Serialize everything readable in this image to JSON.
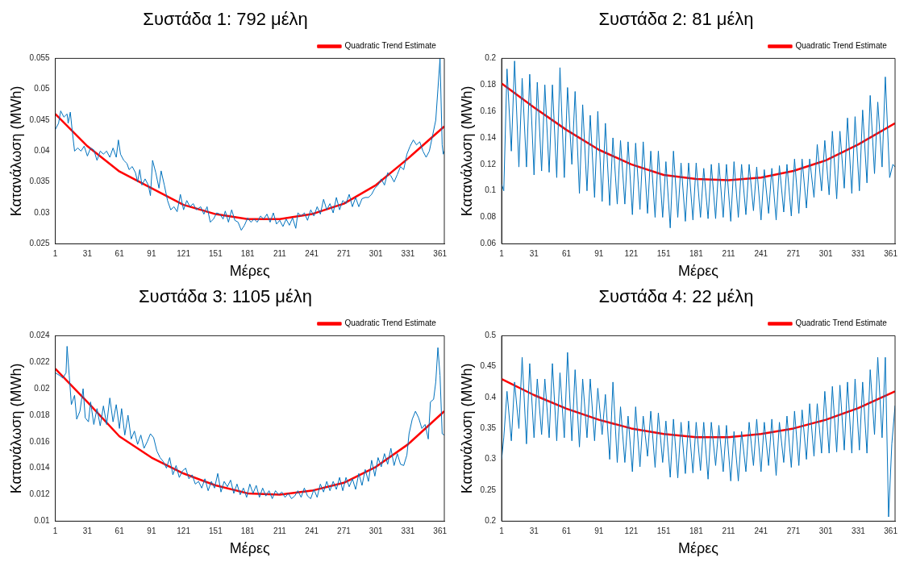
{
  "chart_data": [
    {
      "type": "line",
      "title": "Συστάδα 1: 792 μέλη",
      "xlabel": "Μέρες",
      "ylabel": "Κατανάλωση (MWh)",
      "xlim": [
        1,
        365
      ],
      "xticks": [
        1,
        31,
        61,
        91,
        121,
        151,
        181,
        211,
        241,
        271,
        301,
        331,
        361
      ],
      "ylim": [
        0.025,
        0.055
      ],
      "yticks": [
        0.025,
        0.03,
        0.035,
        0.04,
        0.045,
        0.05,
        0.055
      ],
      "grid": false,
      "legend": "top right",
      "series": [
        {
          "color": "#0072bd",
          "x": [
            1,
            4,
            6,
            9,
            12,
            13,
            15,
            17,
            19,
            22,
            25,
            28,
            31,
            34,
            37,
            40,
            43,
            46,
            49,
            52,
            55,
            58,
            60,
            62,
            65,
            68,
            70,
            73,
            76,
            78,
            80,
            82,
            85,
            88,
            90,
            92,
            95,
            98,
            100,
            103,
            106,
            109,
            112,
            115,
            118,
            121,
            124,
            127,
            130,
            133,
            137,
            140,
            143,
            146,
            149,
            152,
            155,
            158,
            160,
            163,
            166,
            169,
            172,
            175,
            178,
            181,
            184,
            187,
            190,
            193,
            196,
            199,
            202,
            205,
            208,
            211,
            214,
            217,
            220,
            223,
            226,
            228,
            231,
            234,
            237,
            240,
            243,
            246,
            249,
            252,
            255,
            258,
            261,
            264,
            267,
            270,
            273,
            276,
            279,
            282,
            285,
            288,
            291,
            294,
            297,
            300,
            303,
            306,
            309,
            312,
            315,
            318,
            321,
            324,
            327,
            330,
            333,
            336,
            339,
            342,
            345,
            348,
            351,
            354,
            357,
            359,
            361,
            363,
            364,
            365
          ],
          "values": [
            0.0435,
            0.0445,
            0.0465,
            0.0455,
            0.046,
            0.0445,
            0.0463,
            0.043,
            0.04,
            0.0405,
            0.04,
            0.0408,
            0.0392,
            0.0405,
            0.0402,
            0.0385,
            0.04,
            0.0395,
            0.04,
            0.039,
            0.0405,
            0.039,
            0.0418,
            0.0395,
            0.0385,
            0.038,
            0.037,
            0.0375,
            0.0365,
            0.035,
            0.037,
            0.0345,
            0.0355,
            0.0345,
            0.0328,
            0.0385,
            0.0365,
            0.034,
            0.0368,
            0.0345,
            0.032,
            0.0305,
            0.031,
            0.0302,
            0.033,
            0.0305,
            0.032,
            0.031,
            0.0315,
            0.0305,
            0.031,
            0.0298,
            0.031,
            0.0285,
            0.029,
            0.03,
            0.0298,
            0.029,
            0.0303,
            0.0285,
            0.0305,
            0.0288,
            0.0285,
            0.0272,
            0.028,
            0.0292,
            0.0285,
            0.029,
            0.0285,
            0.0295,
            0.029,
            0.0298,
            0.0285,
            0.03,
            0.0282,
            0.0288,
            0.0278,
            0.029,
            0.028,
            0.0292,
            0.0275,
            0.03,
            0.0295,
            0.03,
            0.0288,
            0.0305,
            0.0295,
            0.031,
            0.0298,
            0.0322,
            0.0305,
            0.0315,
            0.03,
            0.0325,
            0.0305,
            0.032,
            0.0315,
            0.033,
            0.031,
            0.0325,
            0.031,
            0.0323,
            0.0325,
            0.0325,
            0.033,
            0.034,
            0.0345,
            0.0355,
            0.0345,
            0.0365,
            0.036,
            0.035,
            0.0362,
            0.0375,
            0.037,
            0.0395,
            0.0408,
            0.0418,
            0.041,
            0.0415,
            0.04,
            0.039,
            0.04,
            0.0425,
            0.045,
            0.05,
            0.055,
            0.041,
            0.0395,
            0.04
          ]
        },
        {
          "type": "line",
          "name": "Quadratic Trend Estimate",
          "color": "#ff0000",
          "x": [
            1,
            31,
            61,
            91,
            121,
            151,
            181,
            211,
            241,
            271,
            301,
            331,
            365
          ],
          "values": [
            0.046,
            0.0408,
            0.0367,
            0.034,
            0.0313,
            0.0298,
            0.029,
            0.029,
            0.0298,
            0.0315,
            0.0345,
            0.0388,
            0.044
          ]
        }
      ]
    },
    {
      "type": "line",
      "title": "Συστάδα 2: 81 μέλη",
      "xlabel": "Μέρες",
      "ylabel": "Κατανάλωση (MWh)",
      "xlim": [
        1,
        365
      ],
      "xticks": [
        1,
        31,
        61,
        91,
        121,
        151,
        181,
        211,
        241,
        271,
        301,
        331,
        361
      ],
      "ylim": [
        0.06,
        0.2
      ],
      "yticks": [
        0.06,
        0.08,
        0.1,
        0.12,
        0.14,
        0.16,
        0.18,
        0.2
      ],
      "grid": false,
      "legend": "top right",
      "series": [
        {
          "color": "#0072bd",
          "x": [
            1,
            3,
            6,
            10,
            13,
            17,
            20,
            24,
            27,
            31,
            34,
            38,
            41,
            45,
            48,
            52,
            55,
            59,
            62,
            66,
            69,
            73,
            76,
            80,
            83,
            87,
            90,
            94,
            97,
            101,
            104,
            108,
            111,
            115,
            118,
            122,
            125,
            129,
            132,
            136,
            139,
            143,
            146,
            150,
            153,
            157,
            160,
            164,
            167,
            171,
            174,
            178,
            181,
            185,
            188,
            192,
            195,
            199,
            202,
            206,
            209,
            213,
            216,
            220,
            223,
            227,
            230,
            234,
            237,
            241,
            244,
            248,
            251,
            255,
            258,
            262,
            265,
            269,
            272,
            276,
            279,
            283,
            286,
            290,
            293,
            297,
            300,
            304,
            307,
            311,
            314,
            318,
            321,
            325,
            328,
            332,
            335,
            339,
            342,
            346,
            349,
            353,
            356,
            360,
            363,
            365
          ],
          "values": [
            0.105,
            0.1,
            0.192,
            0.13,
            0.198,
            0.118,
            0.185,
            0.118,
            0.188,
            0.112,
            0.182,
            0.115,
            0.18,
            0.114,
            0.18,
            0.11,
            0.193,
            0.11,
            0.178,
            0.12,
            0.175,
            0.098,
            0.165,
            0.1,
            0.157,
            0.095,
            0.16,
            0.092,
            0.151,
            0.089,
            0.14,
            0.09,
            0.138,
            0.09,
            0.137,
            0.082,
            0.136,
            0.086,
            0.137,
            0.083,
            0.13,
            0.08,
            0.13,
            0.08,
            0.122,
            0.072,
            0.13,
            0.08,
            0.121,
            0.077,
            0.121,
            0.078,
            0.121,
            0.08,
            0.117,
            0.079,
            0.12,
            0.079,
            0.121,
            0.08,
            0.12,
            0.077,
            0.122,
            0.08,
            0.12,
            0.082,
            0.12,
            0.085,
            0.118,
            0.078,
            0.116,
            0.083,
            0.117,
            0.078,
            0.119,
            0.084,
            0.12,
            0.081,
            0.124,
            0.083,
            0.124,
            0.087,
            0.124,
            0.095,
            0.135,
            0.1,
            0.138,
            0.097,
            0.145,
            0.094,
            0.145,
            0.102,
            0.155,
            0.098,
            0.156,
            0.1,
            0.161,
            0.106,
            0.172,
            0.113,
            0.167,
            0.118,
            0.186,
            0.11,
            0.12,
            0.118
          ]
        },
        {
          "type": "line",
          "name": "Quadratic Trend Estimate",
          "color": "#ff0000",
          "x": [
            1,
            31,
            61,
            91,
            121,
            151,
            181,
            211,
            241,
            271,
            301,
            331,
            365
          ],
          "values": [
            0.181,
            0.163,
            0.146,
            0.131,
            0.12,
            0.112,
            0.109,
            0.108,
            0.11,
            0.115,
            0.123,
            0.135,
            0.151
          ]
        }
      ]
    },
    {
      "type": "line",
      "title": "Συστάδα 3: 1105 μέλη",
      "xlabel": "Μέρες",
      "ylabel": "Κατανάλωση (MWh)",
      "xlim": [
        1,
        365
      ],
      "xticks": [
        1,
        31,
        61,
        91,
        121,
        151,
        181,
        211,
        241,
        271,
        301,
        331,
        361
      ],
      "ylim": [
        0.01,
        0.024
      ],
      "yticks": [
        0.01,
        0.012,
        0.014,
        0.016,
        0.018,
        0.02,
        0.022,
        0.024
      ],
      "grid": false,
      "legend": "top right",
      "series": [
        {
          "color": "#0072bd",
          "x": [
            1,
            5,
            8,
            11,
            12,
            14,
            16,
            19,
            21,
            24,
            27,
            29,
            32,
            34,
            37,
            40,
            43,
            46,
            49,
            52,
            55,
            58,
            61,
            63,
            66,
            69,
            72,
            75,
            78,
            81,
            84,
            87,
            90,
            93,
            96,
            99,
            102,
            105,
            108,
            111,
            114,
            117,
            120,
            123,
            126,
            129,
            132,
            135,
            138,
            141,
            144,
            147,
            150,
            153,
            156,
            159,
            162,
            165,
            168,
            171,
            174,
            177,
            180,
            183,
            186,
            189,
            192,
            195,
            198,
            201,
            204,
            207,
            210,
            213,
            216,
            219,
            222,
            225,
            228,
            231,
            234,
            237,
            240,
            243,
            246,
            249,
            252,
            255,
            258,
            261,
            264,
            267,
            270,
            273,
            276,
            279,
            282,
            285,
            288,
            291,
            294,
            297,
            300,
            303,
            306,
            309,
            312,
            315,
            318,
            321,
            324,
            327,
            330,
            332,
            335,
            338,
            341,
            344,
            347,
            350,
            352,
            355,
            357,
            359,
            361,
            363,
            365
          ],
          "values": [
            0.0212,
            0.021,
            0.0208,
            0.0212,
            0.0232,
            0.021,
            0.0188,
            0.0195,
            0.0177,
            0.0183,
            0.02,
            0.0178,
            0.0175,
            0.019,
            0.0173,
            0.0185,
            0.0172,
            0.0187,
            0.0173,
            0.0193,
            0.0175,
            0.0188,
            0.017,
            0.0185,
            0.0165,
            0.018,
            0.0162,
            0.0168,
            0.0158,
            0.0165,
            0.0155,
            0.016,
            0.0166,
            0.0163,
            0.0153,
            0.0148,
            0.0145,
            0.014,
            0.0148,
            0.0135,
            0.0142,
            0.0133,
            0.0138,
            0.014,
            0.0132,
            0.0135,
            0.0128,
            0.013,
            0.0125,
            0.0132,
            0.0123,
            0.013,
            0.0125,
            0.0136,
            0.0122,
            0.013,
            0.0126,
            0.0131,
            0.0121,
            0.0128,
            0.012,
            0.0125,
            0.0118,
            0.0128,
            0.0121,
            0.0127,
            0.0118,
            0.0125,
            0.0119,
            0.0123,
            0.0117,
            0.0123,
            0.012,
            0.0122,
            0.0118,
            0.0121,
            0.0117,
            0.0119,
            0.0123,
            0.0118,
            0.0125,
            0.0119,
            0.0117,
            0.0124,
            0.0118,
            0.0128,
            0.0122,
            0.013,
            0.0123,
            0.013,
            0.0124,
            0.0133,
            0.0123,
            0.0133,
            0.0126,
            0.0132,
            0.0124,
            0.0136,
            0.0127,
            0.0139,
            0.013,
            0.0146,
            0.0134,
            0.0148,
            0.0141,
            0.0151,
            0.0143,
            0.0155,
            0.0142,
            0.0151,
            0.0143,
            0.0142,
            0.015,
            0.0166,
            0.0177,
            0.0183,
            0.0178,
            0.017,
            0.0173,
            0.0162,
            0.019,
            0.0192,
            0.0205,
            0.0231,
            0.021,
            0.0166,
            0.0165
          ]
        },
        {
          "type": "line",
          "name": "Quadratic Trend Estimate",
          "color": "#ff0000",
          "x": [
            1,
            31,
            61,
            91,
            121,
            151,
            181,
            211,
            241,
            271,
            301,
            331,
            365
          ],
          "values": [
            0.0215,
            0.019,
            0.0164,
            0.0148,
            0.0136,
            0.0127,
            0.0121,
            0.012,
            0.0123,
            0.0129,
            0.0141,
            0.0158,
            0.0183
          ]
        }
      ]
    },
    {
      "type": "line",
      "title": "Συστάδα 4: 22 μέλη",
      "xlabel": "Μέρες",
      "ylabel": "Κατανάλωση (MWh)",
      "xlim": [
        1,
        365
      ],
      "xticks": [
        1,
        31,
        61,
        91,
        121,
        151,
        181,
        211,
        241,
        271,
        301,
        331,
        361
      ],
      "ylim": [
        0.2,
        0.5
      ],
      "yticks": [
        0.2,
        0.25,
        0.3,
        0.35,
        0.4,
        0.45,
        0.5
      ],
      "grid": false,
      "legend": "top right",
      "series": [
        {
          "color": "#0072bd",
          "x": [
            1,
            3,
            6,
            10,
            13,
            17,
            20,
            24,
            27,
            31,
            34,
            38,
            41,
            45,
            48,
            52,
            55,
            59,
            62,
            66,
            69,
            73,
            76,
            80,
            83,
            87,
            90,
            94,
            97,
            101,
            104,
            108,
            111,
            115,
            118,
            122,
            125,
            129,
            132,
            136,
            139,
            143,
            146,
            150,
            153,
            157,
            160,
            164,
            167,
            171,
            174,
            178,
            181,
            185,
            188,
            192,
            195,
            199,
            202,
            206,
            209,
            213,
            216,
            220,
            223,
            227,
            230,
            234,
            237,
            241,
            244,
            248,
            251,
            255,
            258,
            262,
            265,
            269,
            272,
            276,
            279,
            283,
            286,
            290,
            293,
            297,
            300,
            304,
            307,
            311,
            314,
            318,
            321,
            325,
            328,
            332,
            335,
            339,
            342,
            346,
            349,
            353,
            356,
            359,
            362,
            365
          ],
          "values": [
            0.3,
            0.335,
            0.41,
            0.33,
            0.425,
            0.35,
            0.465,
            0.325,
            0.455,
            0.335,
            0.43,
            0.34,
            0.43,
            0.335,
            0.455,
            0.33,
            0.44,
            0.335,
            0.473,
            0.33,
            0.445,
            0.32,
            0.43,
            0.335,
            0.43,
            0.33,
            0.415,
            0.34,
            0.405,
            0.3,
            0.425,
            0.295,
            0.385,
            0.295,
            0.37,
            0.28,
            0.385,
            0.288,
            0.37,
            0.305,
            0.378,
            0.287,
            0.375,
            0.295,
            0.362,
            0.271,
            0.365,
            0.27,
            0.36,
            0.277,
            0.362,
            0.278,
            0.36,
            0.282,
            0.36,
            0.268,
            0.36,
            0.29,
            0.355,
            0.28,
            0.355,
            0.265,
            0.345,
            0.265,
            0.345,
            0.28,
            0.36,
            0.29,
            0.365,
            0.28,
            0.36,
            0.29,
            0.365,
            0.274,
            0.36,
            0.295,
            0.37,
            0.287,
            0.378,
            0.29,
            0.38,
            0.3,
            0.39,
            0.305,
            0.39,
            0.31,
            0.41,
            0.31,
            0.418,
            0.312,
            0.42,
            0.315,
            0.425,
            0.31,
            0.43,
            0.315,
            0.425,
            0.31,
            0.445,
            0.34,
            0.465,
            0.335,
            0.465,
            0.207,
            0.325,
            0.387
          ]
        },
        {
          "type": "line",
          "name": "Quadratic Trend Estimate",
          "color": "#ff0000",
          "x": [
            1,
            31,
            61,
            91,
            121,
            151,
            181,
            211,
            241,
            271,
            301,
            331,
            365
          ],
          "values": [
            0.43,
            0.404,
            0.382,
            0.364,
            0.35,
            0.341,
            0.336,
            0.336,
            0.341,
            0.35,
            0.364,
            0.383,
            0.41
          ]
        }
      ]
    }
  ]
}
